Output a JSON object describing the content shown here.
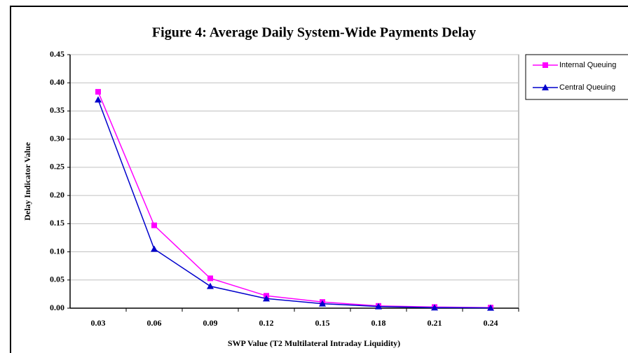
{
  "chart_data": {
    "type": "line",
    "title": "Figure 4: Average Daily System-Wide Payments Delay",
    "x_label": "SWP Value (T2 Multilateral Intraday Liquidity)",
    "y_label": "Delay Indicator Value",
    "categories": [
      "0.03",
      "0.06",
      "0.09",
      "0.12",
      "0.15",
      "0.18",
      "0.21",
      "0.24"
    ],
    "series": [
      {
        "name": "Internal Queuing",
        "color": "#ff00ff",
        "marker": "square",
        "values": [
          0.384,
          0.147,
          0.053,
          0.022,
          0.011,
          0.004,
          0.002,
          0.001
        ]
      },
      {
        "name": "Central Queuing",
        "color": "#0000cc",
        "marker": "triangle",
        "values": [
          0.37,
          0.105,
          0.039,
          0.017,
          0.008,
          0.003,
          0.001,
          0.0005
        ]
      }
    ],
    "ylim": [
      0,
      0.45
    ],
    "yticks": [
      {
        "value": 0,
        "label": "0.00"
      },
      {
        "value": 0.05,
        "label": "0.05"
      },
      {
        "value": 0.1,
        "label": "0.10"
      },
      {
        "value": 0.15,
        "label": "0.15"
      },
      {
        "value": 0.2,
        "label": "0.20"
      },
      {
        "value": 0.25,
        "label": "0.25"
      },
      {
        "value": 0.3,
        "label": "0.30"
      },
      {
        "value": 0.35,
        "label": "0.35"
      },
      {
        "value": 0.4,
        "label": "0.40"
      },
      {
        "value": 0.45,
        "label": "0.45"
      }
    ],
    "grid": true,
    "legend": "right"
  }
}
